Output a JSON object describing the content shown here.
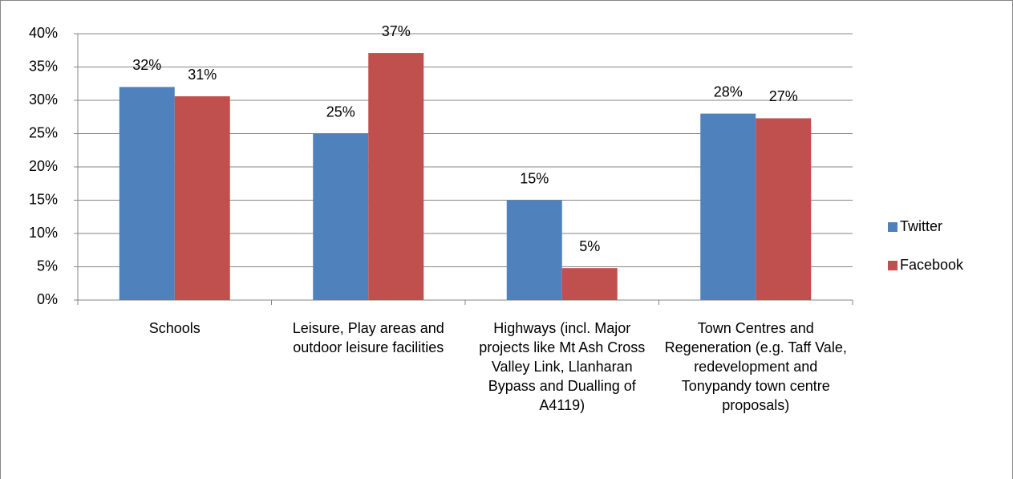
{
  "chart_data": {
    "type": "bar",
    "categories": [
      "Schools",
      "Leisure, Play areas and outdoor leisure facilities",
      "Highways (incl. Major projects like Mt Ash Cross Valley Link, Llanharan Bypass and Dualling of A4119)",
      "Town Centres and Regeneration (e.g. Taff Vale, redevelopment and Tonypandy town centre proposals)"
    ],
    "series": [
      {
        "name": "Twitter",
        "color": "#4f81bd",
        "values": [
          32,
          25,
          15,
          28
        ],
        "value_labels": [
          "32%",
          "25%",
          "15%",
          "28%"
        ]
      },
      {
        "name": "Facebook",
        "color": "#c0504d",
        "values": [
          30.6,
          37.1,
          4.8,
          27.3
        ],
        "value_labels": [
          "31%",
          "37%",
          "5%",
          "27%"
        ]
      }
    ],
    "ylim": [
      0,
      40
    ],
    "yticks": [
      {
        "value": 0,
        "label": "0%"
      },
      {
        "value": 5,
        "label": "5%"
      },
      {
        "value": 10,
        "label": "10%"
      },
      {
        "value": 15,
        "label": "15%"
      },
      {
        "value": 20,
        "label": "20%"
      },
      {
        "value": 25,
        "label": "25%"
      },
      {
        "value": 30,
        "label": "30%"
      },
      {
        "value": 35,
        "label": "35%"
      },
      {
        "value": 40,
        "label": "40%"
      }
    ],
    "grid": true,
    "legend": "right"
  }
}
